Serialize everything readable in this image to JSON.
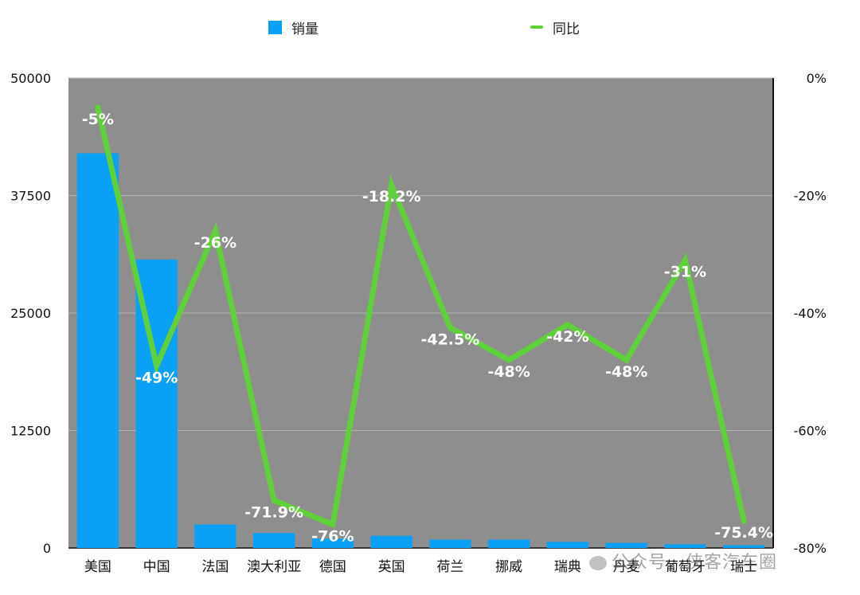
{
  "legend": {
    "bar_label": "销量",
    "line_label": "同比"
  },
  "chart_data": {
    "type": "bar",
    "categories": [
      "美国",
      "中国",
      "法国",
      "澳大利亚",
      "德国",
      "英国",
      "荷兰",
      "挪威",
      "瑞典",
      "丹麦",
      "葡萄牙",
      "瑞士"
    ],
    "series": [
      {
        "name": "销量",
        "type": "bar",
        "axis": "left",
        "color": "#0aa0f5",
        "values": [
          42000,
          30700,
          2500,
          1600,
          1000,
          1300,
          900,
          900,
          650,
          550,
          400,
          300
        ]
      },
      {
        "name": "同比",
        "type": "line",
        "axis": "right",
        "color": "#5fd13b",
        "values": [
          -5,
          -49,
          -26,
          -71.9,
          -76,
          -18.2,
          -42.5,
          -48,
          -42,
          -48,
          -31,
          -75.4
        ],
        "labels": [
          "-5%",
          "-49%",
          "-26%",
          "-71.9%",
          "-76%",
          "-18.2%",
          "-42.5%",
          "-48%",
          "-42%",
          "-48%",
          "-31%",
          "-75.4%"
        ]
      }
    ],
    "y_left": {
      "ylim": [
        0,
        50000
      ],
      "ticks": [
        0,
        12500,
        25000,
        37500,
        50000
      ],
      "tick_labels": [
        "0",
        "12500",
        "25000",
        "37500",
        "50000"
      ]
    },
    "y_right": {
      "ylim": [
        -80,
        0
      ],
      "ticks": [
        -80,
        -60,
        -40,
        -20,
        0
      ],
      "tick_labels": [
        "-80%",
        "-60%",
        "-40%",
        "-20%",
        "0%"
      ]
    },
    "plot_background": "#8e8e8e",
    "grid": true,
    "legend_position": "top"
  },
  "watermark": "公众号 · 侠客汽车圈"
}
